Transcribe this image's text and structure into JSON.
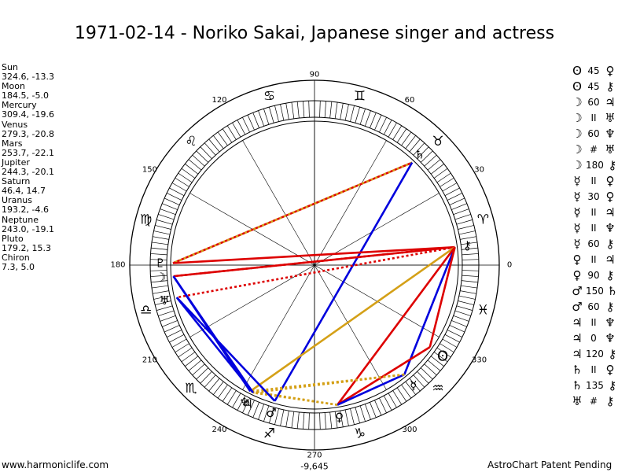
{
  "title": "1971-02-14 - Noriko Sakai, Japanese singer and actress",
  "planets": [
    {
      "name": "Sun",
      "coords": "324.6, -13.3"
    },
    {
      "name": "Moon",
      "coords": "184.5, -5.0"
    },
    {
      "name": "Mercury",
      "coords": "309.4, -19.6"
    },
    {
      "name": "Venus",
      "coords": "279.3, -20.8"
    },
    {
      "name": "Mars",
      "coords": "253.7, -22.1"
    },
    {
      "name": "Jupiter",
      "coords": "244.3, -20.1"
    },
    {
      "name": "Saturn",
      "coords": "46.4, 14.7"
    },
    {
      "name": "Uranus",
      "coords": "193.2, -4.6"
    },
    {
      "name": "Neptune",
      "coords": "243.0, -19.1"
    },
    {
      "name": "Pluto",
      "coords": "179.2, 15.3"
    },
    {
      "name": "Chiron",
      "coords": "7.3, 5.0"
    }
  ],
  "aspects": [
    {
      "p1": "ʘ",
      "type": "45",
      "p2": "♀"
    },
    {
      "p1": "ʘ",
      "type": "45",
      "p2": "⚷"
    },
    {
      "p1": "☽",
      "type": "60",
      "p2": "♃"
    },
    {
      "p1": "☽",
      "type": "II",
      "p2": "♅"
    },
    {
      "p1": "☽",
      "type": "60",
      "p2": "♆"
    },
    {
      "p1": "☽",
      "type": "#",
      "p2": "♅"
    },
    {
      "p1": "☽",
      "type": "180",
      "p2": "⚷"
    },
    {
      "p1": "☿",
      "type": "II",
      "p2": "♀"
    },
    {
      "p1": "☿",
      "type": "30",
      "p2": "♀"
    },
    {
      "p1": "☿",
      "type": "II",
      "p2": "♃"
    },
    {
      "p1": "☿",
      "type": "II",
      "p2": "♆"
    },
    {
      "p1": "☿",
      "type": "60",
      "p2": "⚷"
    },
    {
      "p1": "♀",
      "type": "II",
      "p2": "♃"
    },
    {
      "p1": "♀",
      "type": "90",
      "p2": "⚷"
    },
    {
      "p1": "♂",
      "type": "150",
      "p2": "♄"
    },
    {
      "p1": "♂",
      "type": "60",
      "p2": "⚷"
    },
    {
      "p1": "♃",
      "type": "II",
      "p2": "♆"
    },
    {
      "p1": "♃",
      "type": "0",
      "p2": "♆"
    },
    {
      "p1": "♃",
      "type": "120",
      "p2": "⚷"
    },
    {
      "p1": "♄",
      "type": "II",
      "p2": "♀"
    },
    {
      "p1": "♄",
      "type": "135",
      "p2": "⚷"
    },
    {
      "p1": "♅",
      "type": "#",
      "p2": "⚷"
    }
  ],
  "wheel": {
    "degree_labels": [
      "0",
      "30",
      "60",
      "90",
      "120",
      "150",
      "180",
      "210",
      "240",
      "270",
      "300",
      "330"
    ],
    "zodiac_glyphs": [
      "♈",
      "♉",
      "♊",
      "♋",
      "♌",
      "♍",
      "♎",
      "♏",
      "♐",
      "♑",
      "♒",
      "♓"
    ],
    "planet_glyphs": {
      "sun": "ʘ",
      "moon": "☽",
      "mercury": "☿",
      "venus": "♀",
      "mars": "♂",
      "jupiter": "♃",
      "saturn": "♄",
      "uranus": "♅",
      "neptune": "♆",
      "pluto": "♇",
      "chiron": "⚷"
    },
    "bottom_value": "-9,645"
  },
  "colors": {
    "red": "#dd0000",
    "blue": "#0000dd",
    "gold": "#d4a017"
  },
  "footer": {
    "left": "www.harmoniclife.com",
    "right": "AstroChart Patent Pending"
  }
}
